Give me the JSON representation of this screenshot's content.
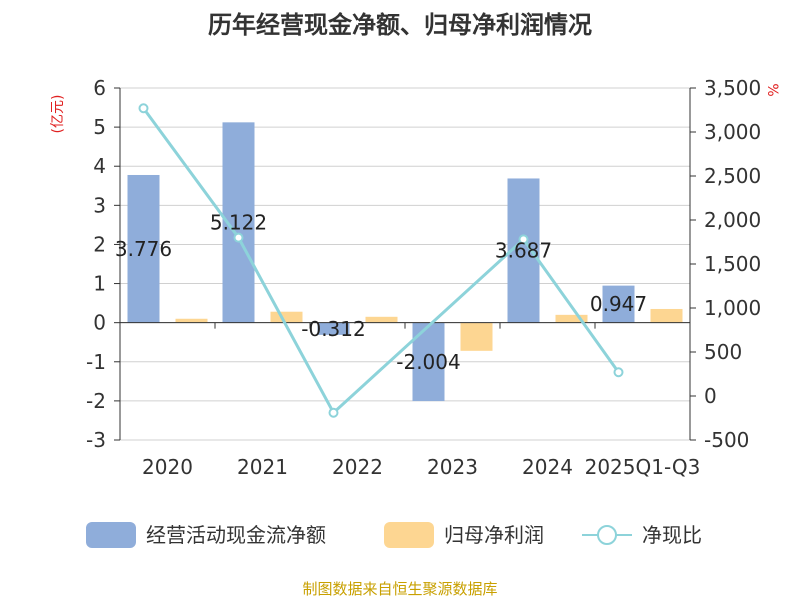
{
  "chart_data": {
    "type": "bar",
    "title": "历年经营现金净额、归母净利润情况",
    "categories": [
      "2020",
      "2021",
      "2022",
      "2023",
      "2024",
      "2025Q1-Q3"
    ],
    "series": [
      {
        "name": "经营活动现金流净额",
        "kind": "bar",
        "axis": "left",
        "color": "#8FADDA",
        "values": [
          3.776,
          5.122,
          -0.312,
          -2.004,
          3.687,
          0.947
        ],
        "labels": [
          "3.776",
          "5.122",
          "-0.312",
          "-2.004",
          "3.687",
          "0.947"
        ]
      },
      {
        "name": "归母净利润",
        "kind": "bar",
        "axis": "left",
        "color": "#FDD692",
        "values": [
          0.1,
          0.28,
          0.15,
          -0.72,
          0.2,
          0.35
        ]
      },
      {
        "name": "净现比",
        "kind": "line",
        "axis": "right",
        "color": "#8DD3DA",
        "values": [
          3270,
          1800,
          -190,
          null,
          1780,
          270
        ]
      }
    ],
    "y_left": {
      "unit": "(亿元)",
      "min": -3,
      "max": 6,
      "ticks": [
        "-3",
        "-2",
        "-1",
        "0",
        "1",
        "2",
        "3",
        "4",
        "5",
        "6"
      ]
    },
    "y_right": {
      "unit": "%",
      "min": -500,
      "max": 3500,
      "ticks": [
        "-500",
        "0",
        "500",
        "1,000",
        "1,500",
        "2,000",
        "2,500",
        "3,000",
        "3,500"
      ]
    },
    "grid": true,
    "legend_position": "bottom"
  },
  "legend": [
    {
      "label": "经营活动现金流净额",
      "icon": "bar-swatch",
      "color": "#8FADDA"
    },
    {
      "label": "归母净利润",
      "icon": "bar-swatch",
      "color": "#FDD692"
    },
    {
      "label": "净现比",
      "icon": "line-circle",
      "color": "#8DD3DA"
    }
  ],
  "source": {
    "text": "制图数据来自恒生聚源数据库",
    "color": "#C8A000"
  },
  "unit_color": "#E02020"
}
